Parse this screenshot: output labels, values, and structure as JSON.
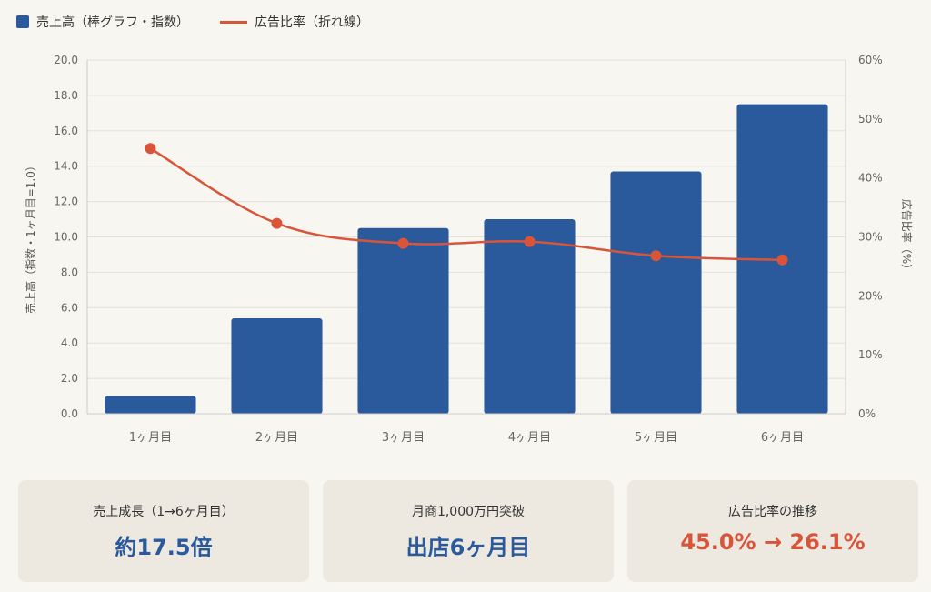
{
  "colors": {
    "bar": "#2a5a9c",
    "line": "#d9553a",
    "grid": "#e2e0da",
    "axis": "#cccccc",
    "card_bg": "#ede9e1",
    "value_blue": "#2a5a9c",
    "value_orange": "#d9553a"
  },
  "legend": {
    "bar_label": "売上高（棒グラフ・指数）",
    "line_label": "広告比率（折れ線）"
  },
  "chart_data": {
    "type": "bar",
    "categories": [
      "1ヶ月目",
      "2ヶ月目",
      "3ヶ月目",
      "4ヶ月目",
      "5ヶ月目",
      "6ヶ月目"
    ],
    "series": [
      {
        "name": "売上高（棒グラフ・指数）",
        "type": "bar",
        "axis": "left",
        "values": [
          1.0,
          5.4,
          10.5,
          11.0,
          13.7,
          17.5
        ]
      },
      {
        "name": "広告比率（折れ線）",
        "type": "line",
        "axis": "right",
        "values": [
          45.0,
          32.3,
          28.9,
          29.2,
          26.8,
          26.1
        ]
      }
    ],
    "y_left": {
      "label": "売上高（指数・1ヶ月目=1.0）",
      "lim": [
        0,
        20
      ],
      "ticks": [
        "0.0",
        "2.0",
        "4.0",
        "6.0",
        "8.0",
        "10.0",
        "12.0",
        "14.0",
        "16.0",
        "18.0",
        "20.0"
      ]
    },
    "y_right": {
      "label": "広告比率（%）",
      "lim": [
        0,
        60
      ],
      "ticks": [
        "0%",
        "10%",
        "20%",
        "30%",
        "40%",
        "50%",
        "60%"
      ]
    },
    "grid": true,
    "legend_position": "top-left"
  },
  "cards": [
    {
      "label": "売上成長（1→6ヶ月目）",
      "value": "約17.5倍",
      "color": "#2a5a9c"
    },
    {
      "label": "月商1,000万円突破",
      "value": "出店6ヶ月目",
      "color": "#2a5a9c"
    },
    {
      "label": "広告比率の推移",
      "value": "45.0% → 26.1%",
      "color": "#d9553a"
    }
  ]
}
